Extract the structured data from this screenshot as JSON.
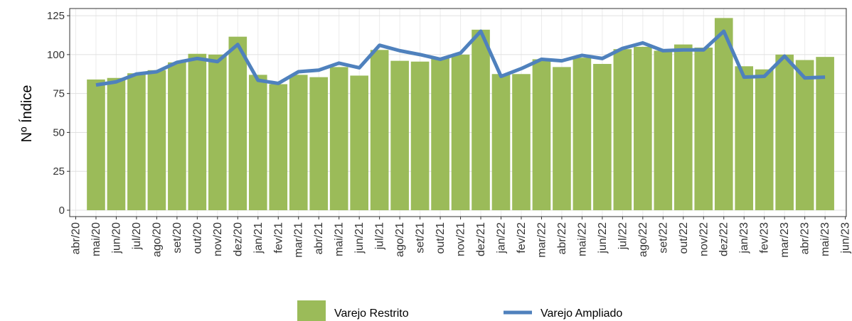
{
  "chart_data": {
    "type": "bar",
    "y_label": "Nº Índice",
    "categories": [
      "abr/20",
      "mai/20",
      "jun/20",
      "jul/20",
      "ago/20",
      "set/20",
      "out/20",
      "nov/20",
      "dez/20",
      "jan/21",
      "fev/21",
      "mar/21",
      "abr/21",
      "mai/21",
      "jun/21",
      "jul/21",
      "ago/21",
      "set/21",
      "out/21",
      "nov/21",
      "dez/21",
      "jan/22",
      "fev/22",
      "mar/22",
      "abr/22",
      "mai/22",
      "jun/22",
      "jul/22",
      "ago/22",
      "set/22",
      "out/22",
      "nov/22",
      "dez/22",
      "jan/23",
      "fev/23",
      "mar/23",
      "abr/23",
      "mai/23",
      "jun/23"
    ],
    "series": [
      {
        "name": "Varejo Restrito",
        "type": "bar",
        "color": "#9bbb59",
        "values": [
          null,
          84,
          85,
          88,
          90,
          95,
          100.5,
          100,
          111.5,
          87,
          81,
          87,
          85.5,
          92,
          86.5,
          103,
          96,
          95.5,
          98,
          100,
          116,
          87.5,
          87.5,
          97,
          92,
          98,
          94,
          103.5,
          105,
          102.5,
          106.5,
          104.5,
          123.5,
          92.5,
          90.5,
          100,
          96.5,
          98.5,
          null
        ]
      },
      {
        "name": "Varejo Ampliado",
        "type": "line",
        "color": "#4f81bd",
        "values": [
          null,
          80.5,
          82.5,
          87.5,
          89,
          95,
          97.5,
          95.5,
          106.5,
          83.5,
          81.5,
          89,
          90,
          94.5,
          91.5,
          106,
          102.5,
          100,
          97,
          101,
          115,
          86,
          91,
          97,
          96,
          99.5,
          97.5,
          104,
          107.5,
          102.5,
          103,
          103,
          115,
          85.5,
          86,
          99,
          85,
          85.5,
          null
        ]
      }
    ],
    "ylim": [
      -4.1,
      129.6
    ],
    "yticks": [
      0,
      25,
      50,
      75,
      100,
      125
    ],
    "grid": true,
    "legend": "bottom"
  }
}
